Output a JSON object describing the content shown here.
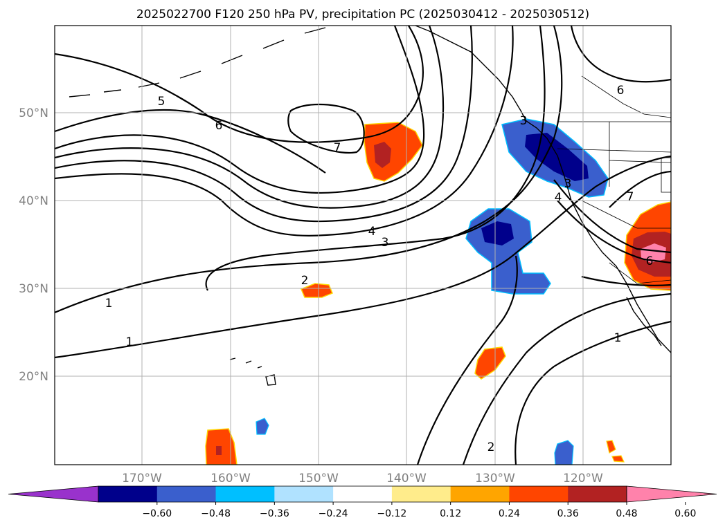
{
  "title": "2025022700 F120 250 hPa PV, precipitation PC (2025030412 - 2025030512)",
  "map": {
    "lon_labels": [
      "170°W",
      "160°W",
      "150°W",
      "140°W",
      "130°W",
      "120°W"
    ],
    "lat_labels": [
      "50°N",
      "40°N",
      "30°N",
      "20°N"
    ],
    "contour_labels": [
      "1",
      "1",
      "1",
      "2",
      "2",
      "3",
      "4",
      "4",
      "5",
      "6",
      "6",
      "7",
      "7",
      "6",
      "3",
      "3"
    ]
  },
  "colorbar": {
    "ticks": [
      "−0.60",
      "−0.48",
      "−0.36",
      "−0.24",
      "−0.12",
      "0.12",
      "0.24",
      "0.36",
      "0.48",
      "0.60"
    ],
    "colors": [
      "#9932cc",
      "#00008b",
      "#3a5fcd",
      "#00bfff",
      "#b0e2ff",
      "#ffffff",
      "#ffec8b",
      "#ffa500",
      "#ff4500",
      "#b22222",
      "#ff82ab"
    ]
  }
}
